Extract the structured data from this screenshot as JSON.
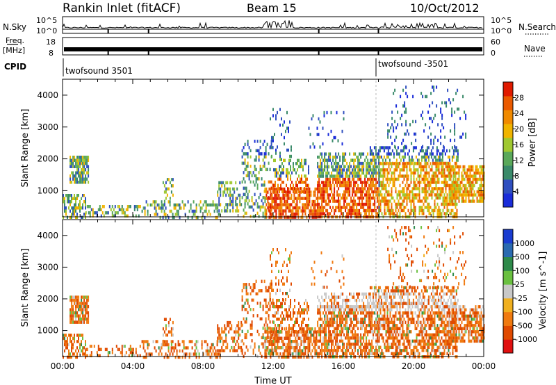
{
  "header": {
    "station": "Rankin Inlet (fitACF)",
    "beam": "Beam 15",
    "date": "10/Oct/2012"
  },
  "strip_labels": {
    "nsky": "N.Sky",
    "nsky_ticks": [
      "10^5",
      "10^0"
    ],
    "nsearch": "N.Search",
    "nsearch_ticks": [
      "10^5",
      "10^0"
    ],
    "freq_line1": "Freq.",
    "freq_line2": "[MHz]",
    "freq_ticks": [
      "18",
      "8"
    ],
    "nave": "Nave",
    "nave_ticks": [
      "60",
      "0"
    ],
    "cpid": "CPID",
    "cpid_segments": [
      {
        "label": "twofsound 3501",
        "start_hour": 0
      },
      {
        "label": "twofsound -3501",
        "start_hour": 18
      }
    ]
  },
  "chart_data": [
    {
      "type": "heatmap",
      "name": "power",
      "ylabel": "Slant Range [km]",
      "xlabel": "",
      "x_ticks": [],
      "x_range_hours": [
        0,
        24
      ],
      "ylim": [
        180,
        4500
      ],
      "y_ticks": [
        1000,
        2000,
        3000,
        4000
      ],
      "colorbar_label": "Power [dB]",
      "colorbar_ticks": [
        "4",
        "8",
        "12",
        "16",
        "20",
        "24",
        "28"
      ],
      "colorbar_colors": [
        "#1a2cd9",
        "#2f4fbf",
        "#3a8a6a",
        "#5aa85a",
        "#a0c830",
        "#f0b400",
        "#f08a00",
        "#ea5a00",
        "#e01a00"
      ]
    },
    {
      "type": "heatmap",
      "name": "velocity",
      "ylabel": "Slant Range [km]",
      "xlabel": "Time UT",
      "x_range_hours": [
        0,
        24
      ],
      "x_ticks": [
        "00:00",
        "04:00",
        "08:00",
        "12:00",
        "16:00",
        "20:00",
        "00:00"
      ],
      "ylim": [
        180,
        4500
      ],
      "y_ticks": [
        1000,
        2000,
        3000,
        4000
      ],
      "colorbar_label": "Velocity [m s^-1]",
      "colorbar_ticks": [
        "1000",
        "500",
        "100",
        "25",
        "-25",
        "-100",
        "-500",
        "-1000"
      ],
      "colorbar_colors": [
        "#1a3cd0",
        "#2a6ab0",
        "#2e8a4a",
        "#6ac040",
        "#c8c8c8",
        "#f0b020",
        "#f07a10",
        "#e04a00",
        "#e01010"
      ]
    }
  ]
}
